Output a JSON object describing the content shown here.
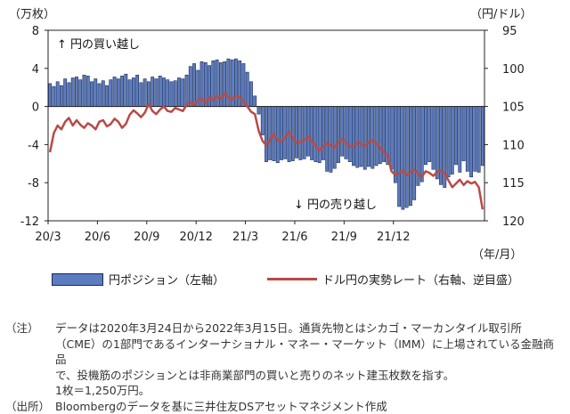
{
  "chart_data": {
    "type": "bar+line",
    "left_unit": "（万枚）",
    "right_unit": "（円/ドル）",
    "left_axis": {
      "ticks": [
        8,
        4,
        0,
        -4,
        -8,
        -12
      ],
      "range": [
        -12,
        8
      ]
    },
    "right_axis": {
      "ticks": [
        95,
        100,
        105,
        110,
        115,
        120
      ],
      "range": [
        95,
        120
      ],
      "inverted": true
    },
    "x_tick_labels": [
      "20/3",
      "20/6",
      "20/9",
      "20/12",
      "21/3",
      "21/6",
      "21/9",
      "21/12"
    ],
    "x_unit": "（年/月）",
    "annotation_up": "↑ 円の買い越し",
    "annotation_down": "↓ 円の売り越し",
    "series": [
      {
        "name": "円ポジション（左軸）",
        "type": "bar",
        "color": "#5b7cc0",
        "values": [
          2.4,
          2.1,
          2.6,
          2.2,
          2.9,
          2.5,
          3.0,
          3.1,
          2.8,
          3.3,
          3.2,
          2.6,
          2.9,
          2.4,
          2.7,
          2.2,
          2.8,
          3.1,
          2.9,
          3.2,
          3.4,
          2.8,
          3.0,
          3.3,
          2.5,
          2.9,
          2.6,
          3.1,
          2.9,
          3.2,
          3.0,
          2.8,
          2.6,
          2.7,
          3.0,
          2.9,
          3.3,
          4.2,
          4.5,
          3.8,
          4.7,
          4.6,
          4.3,
          4.8,
          4.9,
          4.6,
          4.7,
          5.0,
          4.9,
          5.0,
          4.8,
          4.5,
          3.6,
          2.6,
          1.1,
          -0.8,
          -3.0,
          -5.8,
          -5.6,
          -5.7,
          -5.9,
          -5.6,
          -5.5,
          -5.8,
          -5.7,
          -5.4,
          -5.6,
          -5.5,
          -5.2,
          -5.6,
          -5.8,
          -5.9,
          -5.6,
          -6.8,
          -6.9,
          -6.5,
          -5.9,
          -5.2,
          -5.5,
          -5.8,
          -6.2,
          -6.4,
          -6.3,
          -6.6,
          -6.3,
          -6.5,
          -6.2,
          -6.0,
          -5.8,
          -6.1,
          -6.6,
          -8.0,
          -10.5,
          -10.8,
          -10.6,
          -10.4,
          -9.8,
          -8.3,
          -7.9,
          -6.1,
          -5.8,
          -6.6,
          -7.6,
          -8.2,
          -8.5,
          -7.4,
          -7.1,
          -6.1,
          -6.9,
          -5.7,
          -6.8,
          -7.4,
          -6.8,
          -6.9,
          -6.2
        ]
      },
      {
        "name": "ドル円の実勢レート（右軸、逆目盛）",
        "type": "line",
        "color": "#b94a46",
        "values": [
          111.0,
          108.5,
          107.5,
          108.0,
          107.0,
          106.5,
          107.5,
          106.8,
          107.4,
          107.8,
          107.2,
          107.5,
          108.0,
          107.0,
          106.8,
          107.6,
          107.3,
          106.6,
          107.0,
          107.8,
          107.3,
          106.1,
          105.5,
          105.9,
          106.4,
          105.8,
          104.7,
          105.6,
          106.0,
          105.4,
          105.0,
          105.6,
          105.7,
          105.2,
          105.4,
          105.6,
          104.8,
          104.4,
          104.8,
          104.2,
          104.0,
          104.5,
          103.8,
          104.2,
          103.6,
          104.0,
          103.3,
          103.9,
          104.1,
          103.6,
          103.8,
          104.4,
          105.0,
          105.7,
          106.0,
          108.2,
          109.5,
          110.1,
          109.3,
          108.6,
          109.4,
          109.6,
          109.0,
          108.3,
          109.1,
          109.8,
          109.6,
          109.4,
          109.0,
          109.5,
          110.2,
          110.8,
          110.3,
          109.8,
          110.1,
          110.4,
          109.7,
          109.3,
          109.8,
          110.2,
          110.3,
          109.7,
          109.9,
          110.2,
          109.6,
          109.5,
          109.8,
          110.4,
          111.0,
          111.5,
          113.5,
          114.0,
          113.8,
          113.4,
          114.0,
          113.6,
          113.3,
          113.9,
          114.2,
          113.5,
          113.7,
          114.1,
          113.6,
          113.4,
          113.8,
          114.7,
          115.6,
          115.1,
          114.6,
          115.3,
          114.8,
          115.1,
          114.9,
          115.6,
          118.5
        ]
      }
    ]
  },
  "legend": {
    "bar_label": "円ポジション（左軸）",
    "line_label": "ドル円の実勢レート（右軸、逆目盛）"
  },
  "notes": {
    "note_label": "（注）",
    "note_line1": "データは2020年3月24日から2022年3月15日。通貨先物とはシカゴ・マーカンタイル取引所",
    "note_line2": "（CME）の1部門であるインターナショナル・マネー・マーケット（IMM）に上場されている金融商品",
    "note_line3": "で、投機筋のポジションとは非商業部門の買いと売りのネット建玉枚数を指す。",
    "note_line4": "1枚＝1,250万円。",
    "source_label": "（出所）",
    "source_text": "Bloombergのデータを基に三井住友DSアセットマネジメント作成"
  }
}
